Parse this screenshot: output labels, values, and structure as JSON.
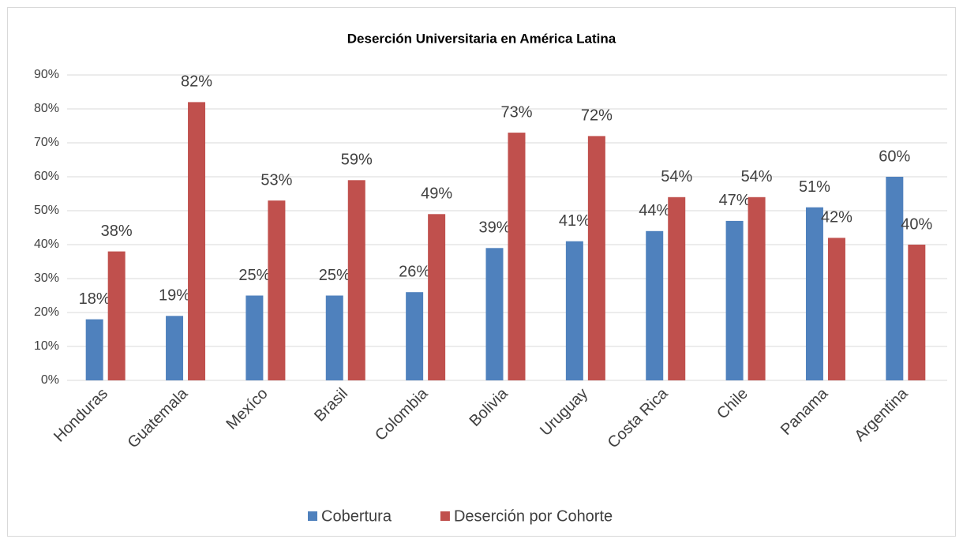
{
  "chart_data": {
    "type": "bar",
    "title": "Deserción Universitaria en América Latina",
    "categories": [
      "Honduras",
      "Guatemala",
      "Mexíco",
      "Brasil",
      "Colombia",
      "Bolivia",
      "Uruguay",
      "Costa Rica",
      "Chile",
      "Panama",
      "Argentina"
    ],
    "series": [
      {
        "name": "Cobertura",
        "color": "#4f81bd",
        "values": [
          18,
          19,
          25,
          25,
          26,
          39,
          41,
          44,
          47,
          51,
          60
        ],
        "value_labels": [
          "18%",
          "19%",
          "25%",
          "25%",
          "26%",
          "39%",
          "41%",
          "44%",
          "47%",
          "51%",
          "60%"
        ]
      },
      {
        "name": "Deserción por Cohorte",
        "color": "#c0504d",
        "values": [
          38,
          82,
          53,
          59,
          49,
          73,
          72,
          54,
          54,
          42,
          40
        ],
        "value_labels": [
          "38%",
          "82%",
          "53%",
          "59%",
          "49%",
          "73%",
          "72%",
          "54%",
          "54%",
          "42%",
          "40%"
        ]
      }
    ],
    "ylim": [
      0,
      90
    ],
    "yticks": [
      {
        "value": 0,
        "label": "0%"
      },
      {
        "value": 10,
        "label": "10%"
      },
      {
        "value": 20,
        "label": "20%"
      },
      {
        "value": 30,
        "label": "30%"
      },
      {
        "value": 40,
        "label": "40%"
      },
      {
        "value": 50,
        "label": "50%"
      },
      {
        "value": 60,
        "label": "60%"
      },
      {
        "value": 70,
        "label": "70%"
      },
      {
        "value": 80,
        "label": "80%"
      },
      {
        "value": 90,
        "label": "90%"
      }
    ],
    "grid": true,
    "legend": "bottom"
  }
}
